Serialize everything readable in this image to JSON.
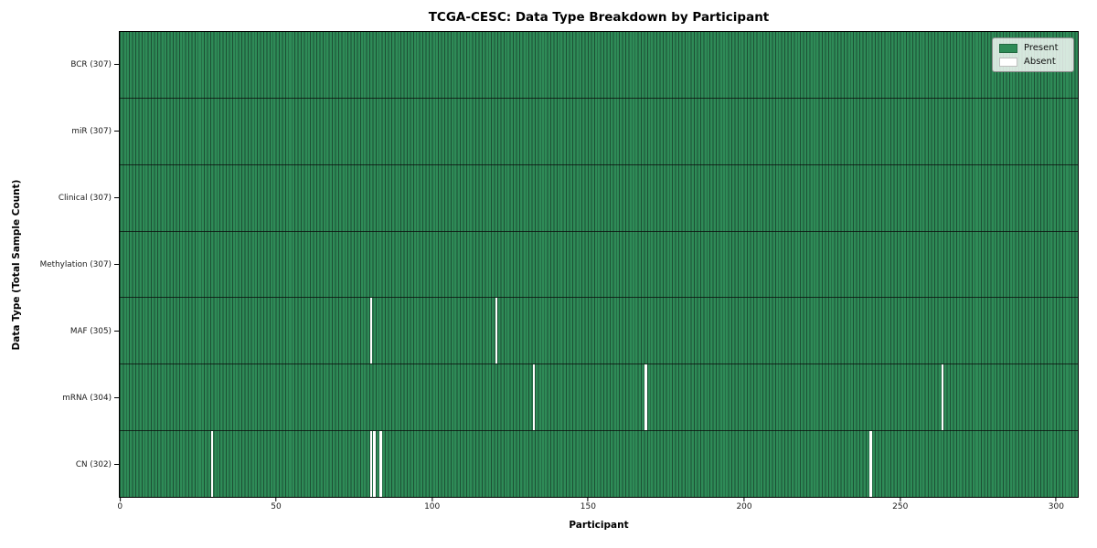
{
  "figure": {
    "title": "TCGA-CESC: Data Type Breakdown by Participant",
    "xlabel": "Participant",
    "ylabel": "Data Type (Total Sample Count)"
  },
  "legend": {
    "items": [
      {
        "name": "present",
        "label": "Present",
        "color": "#2e8b57"
      },
      {
        "name": "absent",
        "label": "Absent",
        "color": "#ffffff"
      }
    ]
  },
  "chart_data": {
    "type": "heatmap",
    "title": "TCGA-CESC: Data Type Breakdown by Participant",
    "xlabel": "Participant",
    "ylabel": "Data Type (Total Sample Count)",
    "x_ticks": [
      0,
      50,
      100,
      150,
      200,
      250,
      300
    ],
    "xlim": [
      0,
      307
    ],
    "n_participants": 307,
    "legend_position": "upper right",
    "cell_values": {
      "present": 1,
      "absent": 0
    },
    "rows": [
      {
        "label": "BCR (307)",
        "data_type": "BCR",
        "present_count": 307,
        "absent_participants": []
      },
      {
        "label": "miR (307)",
        "data_type": "miR",
        "present_count": 307,
        "absent_participants": []
      },
      {
        "label": "Clinical (307)",
        "data_type": "Clinical",
        "present_count": 307,
        "absent_participants": []
      },
      {
        "label": "Methylation (307)",
        "data_type": "Methylation",
        "present_count": 307,
        "absent_participants": []
      },
      {
        "label": "MAF (305)",
        "data_type": "MAF",
        "present_count": 305,
        "absent_participants": [
          80,
          120
        ]
      },
      {
        "label": "mRNA (304)",
        "data_type": "mRNA",
        "present_count": 304,
        "absent_participants": [
          132,
          168,
          263
        ]
      },
      {
        "label": "CN (302)",
        "data_type": "CN",
        "present_count": 302,
        "absent_participants": [
          29,
          80,
          81,
          83,
          240
        ]
      }
    ],
    "colors": {
      "present": "#2e8b57",
      "absent": "#ffffff",
      "cell_edge": "#1c4f34",
      "row_divider": "#1a1a1a",
      "axis_spine": "#000000"
    }
  }
}
